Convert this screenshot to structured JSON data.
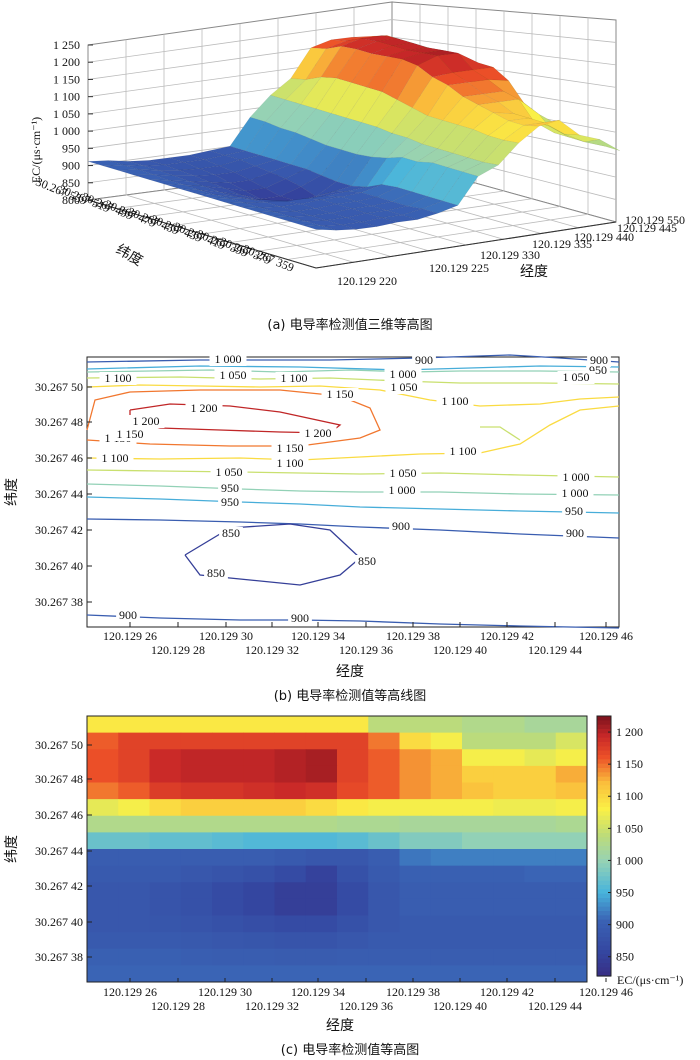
{
  "captions": {
    "a": "(a) 电导率检测值三维等高图",
    "b": "(b) 电导率检测值等高线图",
    "c": "(c) 电导率检测值等高图"
  },
  "chart_data": [
    {
      "type": "surface",
      "zlabel": "EC/(μs·cm⁻¹)",
      "xlabel": "经度",
      "ylabel": "纬度",
      "z_ticks": [
        "800",
        "850",
        "900",
        "950",
        "1 000",
        "1 050",
        "1 100",
        "1 150",
        "1 200",
        "1 250"
      ],
      "x_ticks": [
        "120.129 220",
        "120.129 225",
        "120.129 330",
        "120.129 335",
        "120.129 440",
        "120.129 445",
        "120.129 550"
      ],
      "y_ticks": [
        "30.267 539",
        "30.267 519",
        "30.267 499",
        "30.267 479",
        "30.267 459",
        "30.267 439",
        "30.267 419",
        "30.267 399",
        "30.267 379",
        "30.267 359"
      ],
      "zlim": [
        800,
        1250
      ]
    },
    {
      "type": "contour",
      "xlabel": "经度",
      "ylabel": "纬度",
      "x_ticks_top": [
        "120.129 26",
        "120.129 30",
        "120.129 34",
        "120.129 38",
        "120.129 42",
        "120.129 46"
      ],
      "x_ticks_bottom": [
        "120.129 28",
        "120.129 32",
        "120.129 36",
        "120.129 40",
        "120.129 44"
      ],
      "y_ticks": [
        "30.267 50",
        "30.267 48",
        "30.267 46",
        "30.267 44",
        "30.267 42",
        "30.267 40",
        "30.267 38"
      ],
      "xlim": [
        120.12924,
        120.12946
      ],
      "ylim": [
        30.267368,
        30.267515
      ],
      "levels": [
        850,
        900,
        950,
        1000,
        1050,
        1100,
        1150,
        1200
      ],
      "contour_labels": [
        "1 000",
        "900",
        "900",
        "1 100",
        "1 050",
        "1 100",
        "1 000",
        "950",
        "950",
        "1 000",
        "1 050",
        "1 150",
        "1 150",
        "1 050",
        "1 200",
        "1 100",
        "1 200",
        "1 200",
        "1 150",
        "1 150",
        "1 100",
        "1 100",
        "1 100",
        "1 050",
        "1 050",
        "1 000",
        "1 000",
        "950",
        "950",
        "900",
        "900",
        "850",
        "850",
        "850",
        "900",
        "900"
      ]
    },
    {
      "type": "heatmap",
      "xlabel": "经度",
      "ylabel": "纬度",
      "colorbar_label": "EC/(μs·cm⁻¹)",
      "colorbar_ticks": [
        "850",
        "900",
        "950",
        "1 000",
        "1 050",
        "1 100",
        "1 150",
        "1 200"
      ],
      "colorbar_range": [
        820,
        1225
      ],
      "x_ticks_top": [
        "120.129 26",
        "120.129 30",
        "120.129 34",
        "120.129 38",
        "120.129 42",
        "120.129 46"
      ],
      "x_ticks_bottom": [
        "120.129 28",
        "120.129 32",
        "120.129 36",
        "120.129 40",
        "120.129 44"
      ],
      "y_ticks": [
        "30.267 50",
        "30.267 48",
        "30.267 46",
        "30.267 44",
        "30.267 42",
        "30.267 40",
        "30.267 38"
      ],
      "grid_rows": 16,
      "grid_cols": 16,
      "values": [
        [
          1090,
          1090,
          1090,
          1090,
          1090,
          1090,
          1090,
          1090,
          1090,
          1040,
          1040,
          1040,
          1030,
          1030,
          1020,
          1020
        ],
        [
          1160,
          1175,
          1175,
          1175,
          1175,
          1175,
          1175,
          1175,
          1175,
          1150,
          1100,
          1080,
          1040,
          1040,
          1040,
          1060
        ],
        [
          1165,
          1175,
          1195,
          1200,
          1200,
          1200,
          1205,
          1210,
          1175,
          1160,
          1140,
          1130,
          1080,
          1080,
          1070,
          1080
        ],
        [
          1165,
          1175,
          1195,
          1200,
          1200,
          1200,
          1205,
          1210,
          1175,
          1160,
          1140,
          1130,
          1110,
          1110,
          1110,
          1130
        ],
        [
          1150,
          1160,
          1180,
          1185,
          1185,
          1190,
          1195,
          1190,
          1170,
          1160,
          1140,
          1130,
          1120,
          1110,
          1110,
          1120
        ],
        [
          1070,
          1080,
          1100,
          1110,
          1110,
          1110,
          1110,
          1100,
          1090,
          1080,
          1080,
          1080,
          1080,
          1075,
          1075,
          1080
        ],
        [
          1030,
          1030,
          1030,
          1030,
          1030,
          1030,
          1030,
          1030,
          1025,
          1025,
          1020,
          1020,
          1020,
          1020,
          1020,
          1025
        ],
        [
          975,
          975,
          970,
          970,
          965,
          960,
          960,
          960,
          965,
          975,
          990,
          990,
          1000,
          1000,
          1000,
          1000
        ],
        [
          900,
          900,
          900,
          900,
          900,
          900,
          895,
          890,
          890,
          900,
          920,
          925,
          925,
          925,
          925,
          925
        ],
        [
          895,
          895,
          895,
          890,
          885,
          880,
          870,
          855,
          880,
          895,
          905,
          905,
          905,
          905,
          910,
          910
        ],
        [
          890,
          890,
          885,
          880,
          870,
          860,
          850,
          850,
          870,
          890,
          900,
          900,
          900,
          900,
          900,
          900
        ],
        [
          890,
          890,
          885,
          880,
          870,
          860,
          850,
          850,
          870,
          890,
          900,
          900,
          900,
          900,
          900,
          900
        ],
        [
          890,
          890,
          888,
          885,
          880,
          875,
          870,
          870,
          880,
          890,
          895,
          895,
          895,
          895,
          895,
          895
        ],
        [
          895,
          895,
          895,
          893,
          890,
          888,
          885,
          885,
          890,
          895,
          895,
          895,
          895,
          895,
          895,
          895
        ],
        [
          905,
          905,
          905,
          903,
          900,
          900,
          898,
          898,
          900,
          900,
          900,
          900,
          900,
          900,
          900,
          900
        ],
        [
          910,
          910,
          910,
          910,
          910,
          910,
          910,
          910,
          910,
          910,
          910,
          910,
          910,
          910,
          910,
          910
        ]
      ]
    }
  ]
}
